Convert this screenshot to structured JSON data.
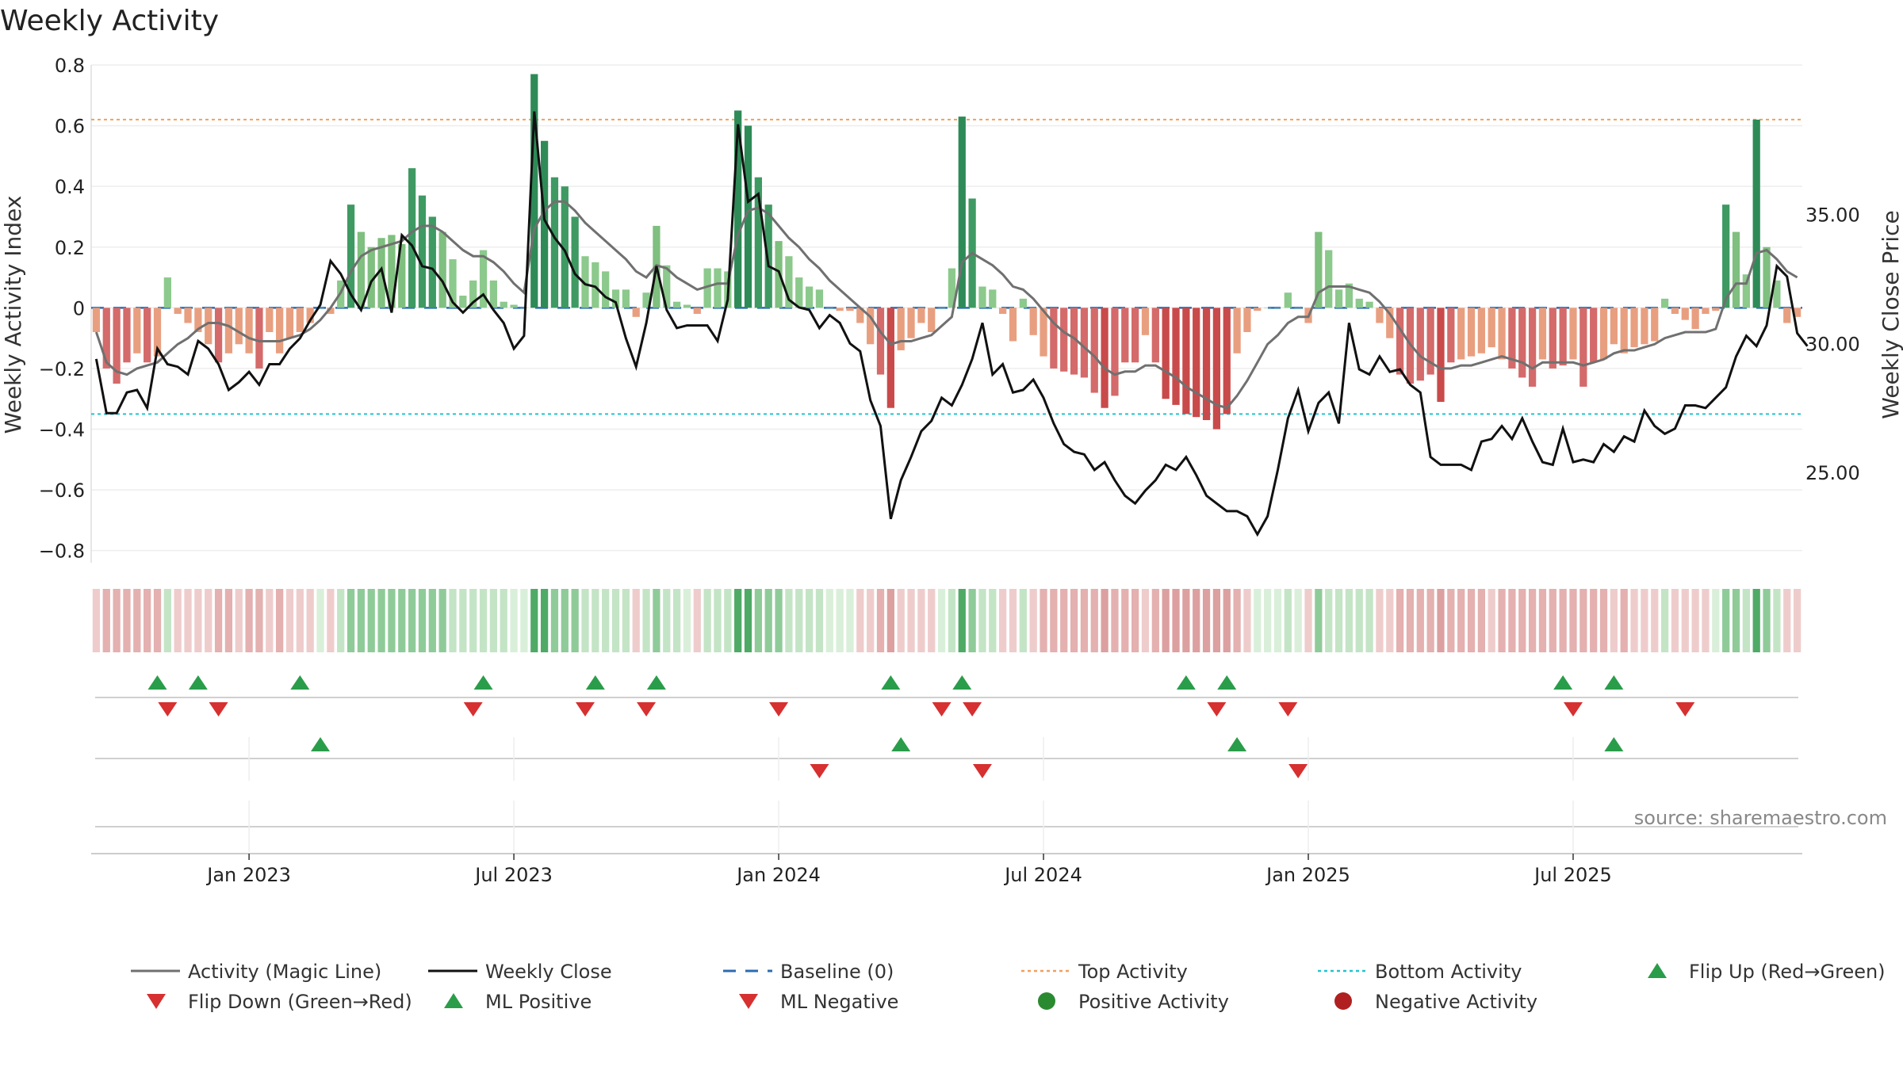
{
  "chart_data": {
    "type": "bar",
    "title": "Weekly Activity",
    "ylabel": "Weekly Activity Index",
    "y2label": "Weekly Close Price",
    "ylim": [
      -0.84,
      0.8
    ],
    "y2lim": [
      21.5,
      40.8
    ],
    "yticks": [
      "−0.8",
      "−0.6",
      "−0.4",
      "−0.2",
      "0",
      "0.2",
      "0.4",
      "0.6",
      "0.8"
    ],
    "yticks_values": [
      -0.8,
      -0.6,
      -0.4,
      -0.2,
      0,
      0.2,
      0.4,
      0.6,
      0.8
    ],
    "y2ticks": [
      "25.00",
      "30.00",
      "35.00"
    ],
    "y2ticks_values": [
      25,
      30,
      35
    ],
    "xticks": [
      "Jan 2023",
      "Jul 2023",
      "Jan 2024",
      "Jul 2024",
      "Jan 2025",
      "Jul 2025"
    ],
    "xticks_week": [
      15,
      41,
      67,
      93,
      119,
      145
    ],
    "top_activity": 0.62,
    "bottom_activity": -0.35,
    "activity_bars": [
      -0.08,
      -0.2,
      -0.25,
      -0.18,
      -0.15,
      -0.18,
      -0.16,
      0.1,
      -0.02,
      -0.05,
      -0.08,
      -0.12,
      -0.18,
      -0.15,
      -0.12,
      -0.15,
      -0.2,
      -0.08,
      -0.15,
      -0.1,
      -0.08,
      -0.05,
      0.0,
      -0.02,
      0.09,
      0.34,
      0.25,
      0.2,
      0.23,
      0.24,
      0.21,
      0.46,
      0.37,
      0.3,
      0.25,
      0.16,
      0.04,
      0.09,
      0.19,
      0.09,
      0.02,
      0.01,
      0.0,
      0.77,
      0.55,
      0.43,
      0.4,
      0.3,
      0.17,
      0.15,
      0.12,
      0.06,
      0.06,
      -0.03,
      0.05,
      0.27,
      0.14,
      0.02,
      0.01,
      -0.02,
      0.13,
      0.13,
      0.12,
      0.65,
      0.6,
      0.43,
      0.34,
      0.22,
      0.17,
      0.1,
      0.07,
      0.06,
      0.0,
      -0.01,
      -0.01,
      -0.05,
      -0.12,
      -0.22,
      -0.33,
      -0.14,
      -0.1,
      -0.05,
      -0.08,
      0.0,
      0.13,
      0.63,
      0.36,
      0.07,
      0.06,
      -0.02,
      -0.11,
      0.03,
      -0.09,
      -0.16,
      -0.2,
      -0.21,
      -0.22,
      -0.23,
      -0.28,
      -0.33,
      -0.29,
      -0.18,
      -0.18,
      -0.09,
      -0.18,
      -0.3,
      -0.32,
      -0.35,
      -0.36,
      -0.37,
      -0.4,
      -0.35,
      -0.15,
      -0.08,
      -0.01,
      0.0,
      0.0,
      0.05,
      0.0,
      -0.05,
      0.25,
      0.19,
      0.06,
      0.08,
      0.03,
      0.02,
      -0.05,
      -0.1,
      -0.22,
      -0.25,
      -0.24,
      -0.22,
      -0.31,
      -0.18,
      -0.17,
      -0.16,
      -0.15,
      -0.13,
      -0.17,
      -0.2,
      -0.23,
      -0.26,
      -0.17,
      -0.2,
      -0.19,
      -0.17,
      -0.26,
      -0.18,
      -0.17,
      -0.12,
      -0.15,
      -0.13,
      -0.12,
      -0.11,
      0.03,
      -0.02,
      -0.04,
      -0.07,
      -0.02,
      -0.01,
      0.34,
      0.25,
      0.11,
      0.62,
      0.2,
      0.09,
      -0.05,
      -0.03
    ],
    "weekly_close": [
      29.4,
      27.3,
      27.3,
      28.1,
      28.2,
      27.5,
      29.8,
      29.2,
      29.1,
      28.8,
      30.1,
      29.8,
      29.2,
      28.2,
      28.5,
      28.9,
      28.4,
      29.2,
      29.2,
      29.8,
      30.2,
      30.9,
      31.5,
      33.2,
      32.7,
      31.9,
      31.3,
      32.4,
      32.9,
      31.2,
      34.2,
      33.8,
      33.0,
      32.9,
      32.4,
      31.6,
      31.2,
      31.6,
      31.9,
      31.3,
      30.8,
      29.8,
      30.3,
      39.0,
      34.8,
      34.1,
      33.6,
      32.7,
      32.3,
      32.2,
      31.8,
      31.6,
      30.2,
      29.1,
      30.8,
      33.0,
      31.3,
      30.6,
      30.7,
      30.7,
      30.7,
      30.1,
      31.7,
      38.5,
      35.5,
      35.8,
      33.0,
      32.8,
      31.7,
      31.4,
      31.3,
      30.6,
      31.1,
      30.8,
      30.0,
      29.7,
      27.8,
      26.8,
      23.2,
      24.7,
      25.6,
      26.6,
      27.0,
      27.9,
      27.6,
      28.4,
      29.4,
      30.8,
      28.8,
      29.2,
      28.1,
      28.2,
      28.6,
      27.9,
      26.9,
      26.1,
      25.8,
      25.7,
      25.1,
      25.4,
      24.7,
      24.1,
      23.8,
      24.3,
      24.7,
      25.3,
      25.1,
      25.6,
      24.9,
      24.1,
      23.8,
      23.5,
      23.5,
      23.3,
      22.6,
      23.3,
      25.1,
      27.1,
      28.2,
      26.6,
      27.7,
      28.1,
      26.9,
      30.8,
      29.0,
      28.8,
      29.5,
      28.9,
      29.0,
      28.4,
      28.1,
      25.6,
      25.3,
      25.3,
      25.3,
      25.1,
      26.2,
      26.3,
      26.8,
      26.3,
      27.1,
      26.2,
      25.4,
      25.3,
      26.7,
      25.4,
      25.5,
      25.4,
      26.1,
      25.8,
      26.4,
      26.2,
      27.4,
      26.8,
      26.5,
      26.7,
      27.6,
      27.6,
      27.5,
      27.9,
      28.3,
      29.5,
      30.3,
      29.9,
      30.7,
      33.0,
      32.6,
      30.4,
      29.9
    ],
    "magic_line": [
      -0.08,
      -0.18,
      -0.21,
      -0.22,
      -0.2,
      -0.19,
      -0.18,
      -0.15,
      -0.12,
      -0.1,
      -0.07,
      -0.05,
      -0.05,
      -0.06,
      -0.08,
      -0.1,
      -0.11,
      -0.11,
      -0.11,
      -0.1,
      -0.09,
      -0.07,
      -0.04,
      0.0,
      0.05,
      0.12,
      0.17,
      0.19,
      0.2,
      0.21,
      0.22,
      0.25,
      0.27,
      0.27,
      0.25,
      0.22,
      0.19,
      0.17,
      0.17,
      0.15,
      0.12,
      0.08,
      0.05,
      0.26,
      0.32,
      0.35,
      0.35,
      0.32,
      0.28,
      0.25,
      0.22,
      0.19,
      0.16,
      0.12,
      0.1,
      0.14,
      0.13,
      0.1,
      0.08,
      0.06,
      0.07,
      0.08,
      0.08,
      0.24,
      0.32,
      0.33,
      0.31,
      0.27,
      0.23,
      0.2,
      0.16,
      0.13,
      0.09,
      0.06,
      0.03,
      0.0,
      -0.03,
      -0.08,
      -0.12,
      -0.11,
      -0.11,
      -0.1,
      -0.09,
      -0.06,
      -0.03,
      0.15,
      0.18,
      0.16,
      0.14,
      0.11,
      0.07,
      0.06,
      0.03,
      -0.01,
      -0.05,
      -0.08,
      -0.1,
      -0.13,
      -0.16,
      -0.2,
      -0.22,
      -0.21,
      -0.21,
      -0.19,
      -0.19,
      -0.21,
      -0.23,
      -0.26,
      -0.28,
      -0.3,
      -0.32,
      -0.33,
      -0.29,
      -0.24,
      -0.18,
      -0.12,
      -0.09,
      -0.05,
      -0.03,
      -0.03,
      0.05,
      0.07,
      0.07,
      0.07,
      0.06,
      0.05,
      0.02,
      -0.02,
      -0.07,
      -0.12,
      -0.16,
      -0.18,
      -0.2,
      -0.2,
      -0.19,
      -0.19,
      -0.18,
      -0.17,
      -0.16,
      -0.17,
      -0.18,
      -0.2,
      -0.18,
      -0.18,
      -0.18,
      -0.18,
      -0.19,
      -0.18,
      -0.17,
      -0.15,
      -0.14,
      -0.14,
      -0.13,
      -0.12,
      -0.1,
      -0.09,
      -0.08,
      -0.08,
      -0.08,
      -0.07,
      0.03,
      0.08,
      0.08,
      0.18,
      0.19,
      0.16,
      0.12,
      0.1
    ],
    "flip_up_weeks": [
      6,
      10,
      20,
      38,
      49,
      55,
      78,
      85,
      107,
      111,
      144,
      149
    ],
    "flip_down_weeks": [
      7,
      12,
      37,
      48,
      54,
      67,
      83,
      86,
      110,
      117,
      145,
      156
    ],
    "ml_positive_weeks": [
      22,
      79,
      112,
      149
    ],
    "ml_negative_weeks": [
      71,
      87,
      118
    ],
    "legend": [
      {
        "label": "Activity (Magic Line)",
        "kind": "line-gray"
      },
      {
        "label": "Weekly Close",
        "kind": "line-black"
      },
      {
        "label": "Baseline (0)",
        "kind": "dash-blue"
      },
      {
        "label": "Top Activity",
        "kind": "dot-orange"
      },
      {
        "label": "Bottom Activity",
        "kind": "dot-cyan"
      },
      {
        "label": "Flip Up (Red→Green)",
        "kind": "tri-up"
      },
      {
        "label": "Flip Down (Green→Red)",
        "kind": "tri-down"
      },
      {
        "label": "ML Positive",
        "kind": "tri-up"
      },
      {
        "label": "ML Negative",
        "kind": "tri-down"
      },
      {
        "label": "Positive Activity",
        "kind": "circle-green"
      },
      {
        "label": "Negative Activity",
        "kind": "circle-red"
      }
    ],
    "source": "source: sharemaestro.com"
  }
}
